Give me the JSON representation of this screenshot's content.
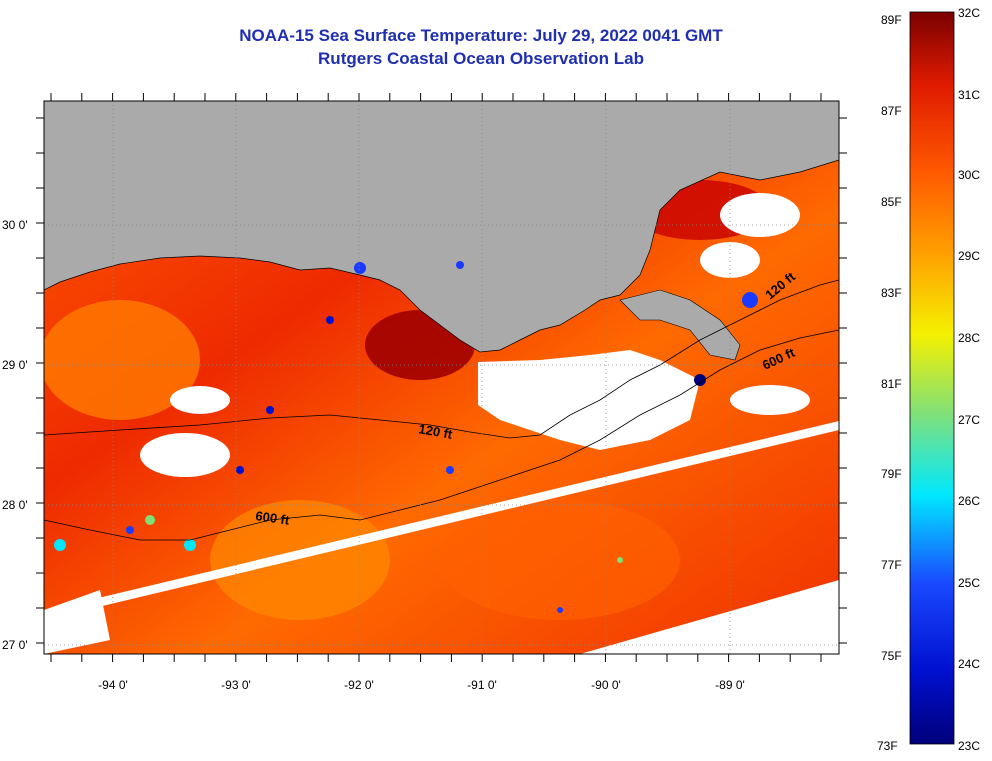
{
  "title": {
    "line1": "NOAA-15 Sea Surface Temperature:  July 29, 2022 0041 GMT",
    "line2": "Rutgers Coastal Ocean Observation Lab"
  },
  "map": {
    "latitude_labels": [
      "30 0'",
      "29 0'",
      "28 0'",
      "27 0'"
    ],
    "longitude_labels": [
      "-94 0'",
      "-93 0'",
      "-92 0'",
      "-91 0'",
      "-90 0'",
      "-89 0'"
    ],
    "contour_labels": [
      "120 ft",
      "600 ft",
      "600 ft",
      "120 ft"
    ]
  },
  "colorbar": {
    "fahrenheit_labels": [
      "89F",
      "87F",
      "85F",
      "83F",
      "81F",
      "79F",
      "77F",
      "75F",
      "73F"
    ],
    "celsius_labels": [
      "32C",
      "31C",
      "30C",
      "29C",
      "28C",
      "27C",
      "26C",
      "25C",
      "24C",
      "23C"
    ],
    "colors": {
      "high": "#7a0000",
      "red": "#e01b00",
      "orange": "#ff8a00",
      "yellow": "#f5f000",
      "green": "#7fe07a",
      "cyan": "#00e8ff",
      "blue": "#1a4aff",
      "low": "#00007a"
    }
  },
  "colors": {
    "land": "#aaaaaa",
    "title": "#1f2fb0"
  }
}
